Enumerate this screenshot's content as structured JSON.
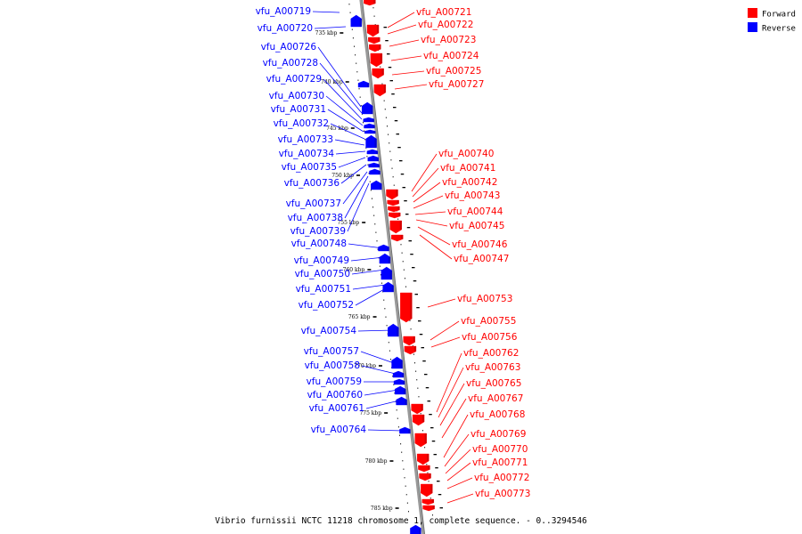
{
  "caption": "Vibrio furnissii NCTC 11218 chromosome 1, complete sequence. - 0..3294546",
  "legend": {
    "forward_label": "Forward",
    "reverse_label": "Reverse",
    "forward_color": "#ff0000",
    "reverse_color": "#0000ff"
  },
  "ticks": [
    "735 kbp",
    "740 kbp",
    "745 kbp",
    "750 kbp",
    "755 kbp",
    "760 kbp",
    "765 kbp",
    "770 kbp",
    "775 kbp",
    "780 kbp",
    "785 kbp"
  ],
  "forward_genes": [
    "vfu_A00721",
    "vfu_A00722",
    "vfu_A00723",
    "vfu_A00724",
    "vfu_A00725",
    "vfu_A00727",
    "vfu_A00740",
    "vfu_A00741",
    "vfu_A00742",
    "vfu_A00743",
    "vfu_A00744",
    "vfu_A00745",
    "vfu_A00746",
    "vfu_A00747",
    "vfu_A00753",
    "vfu_A00755",
    "vfu_A00756",
    "vfu_A00762",
    "vfu_A00763",
    "vfu_A00765",
    "vfu_A00767",
    "vfu_A00768",
    "vfu_A00769",
    "vfu_A00770",
    "vfu_A00771",
    "vfu_A00772",
    "vfu_A00773"
  ],
  "reverse_genes": [
    "vfu_A00719",
    "vfu_A00720",
    "vfu_A00726",
    "vfu_A00728",
    "vfu_A00729",
    "vfu_A00730",
    "vfu_A00731",
    "vfu_A00732",
    "vfu_A00733",
    "vfu_A00734",
    "vfu_A00735",
    "vfu_A00736",
    "vfu_A00737",
    "vfu_A00738",
    "vfu_A00739",
    "vfu_A00748",
    "vfu_A00749",
    "vfu_A00750",
    "vfu_A00751",
    "vfu_A00752",
    "vfu_A00754",
    "vfu_A00757",
    "vfu_A00758",
    "vfu_A00759",
    "vfu_A00760",
    "vfu_A00761",
    "vfu_A00764"
  ]
}
